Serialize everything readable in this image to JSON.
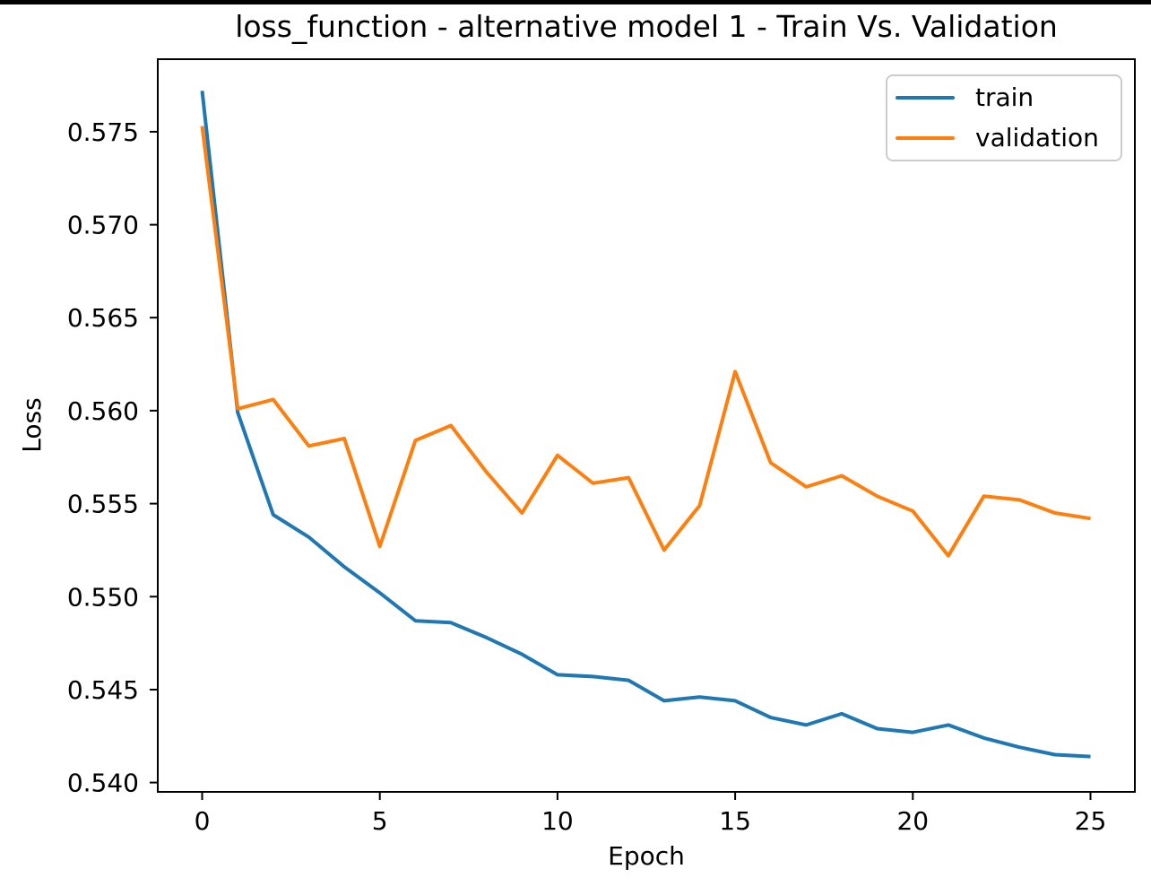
{
  "figure": {
    "background": "#ffffff",
    "top_bar_color": "#000000"
  },
  "chart_data": {
    "type": "line",
    "title": "loss_function - alternative model 1 - Train Vs. Validation",
    "xlabel": "Epoch",
    "ylabel": "Loss",
    "x": [
      0,
      1,
      2,
      3,
      4,
      5,
      6,
      7,
      8,
      9,
      10,
      11,
      12,
      13,
      14,
      15,
      16,
      17,
      18,
      19,
      20,
      21,
      22,
      23,
      24,
      25
    ],
    "series": [
      {
        "name": "train",
        "color": "#1f77b4",
        "values": [
          0.5772,
          0.5599,
          0.5544,
          0.5532,
          0.5516,
          0.5502,
          0.5487,
          0.5486,
          0.5478,
          0.5469,
          0.5458,
          0.5457,
          0.5455,
          0.5444,
          0.5446,
          0.5444,
          0.5435,
          0.5431,
          0.5437,
          0.5429,
          0.5427,
          0.5431,
          0.5424,
          0.5419,
          0.5415,
          0.5414
        ]
      },
      {
        "name": "validation",
        "color": "#ff7f0e",
        "values": [
          0.5753,
          0.5601,
          0.5606,
          0.5581,
          0.5585,
          0.5527,
          0.5584,
          0.5592,
          0.5567,
          0.5545,
          0.5576,
          0.5561,
          0.5564,
          0.5525,
          0.5549,
          0.5621,
          0.5572,
          0.5559,
          0.5565,
          0.5554,
          0.5546,
          0.5522,
          0.5554,
          0.5552,
          0.5545,
          0.5542
        ]
      }
    ],
    "xlim": [
      -1.25,
      26.25
    ],
    "ylim": [
      0.5395,
      0.5789
    ],
    "xticks": [
      0,
      5,
      10,
      15,
      20,
      25
    ],
    "yticks": [
      0.54,
      0.545,
      0.55,
      0.555,
      0.56,
      0.565,
      0.57,
      0.575
    ],
    "ytick_labels": [
      "0.540",
      "0.545",
      "0.550",
      "0.555",
      "0.560",
      "0.565",
      "0.570",
      "0.575"
    ],
    "grid": false,
    "legend": {
      "position": "upper right",
      "entries": [
        "train",
        "validation"
      ]
    },
    "axis_color": "#000000",
    "tick_label_color": "#000000"
  }
}
